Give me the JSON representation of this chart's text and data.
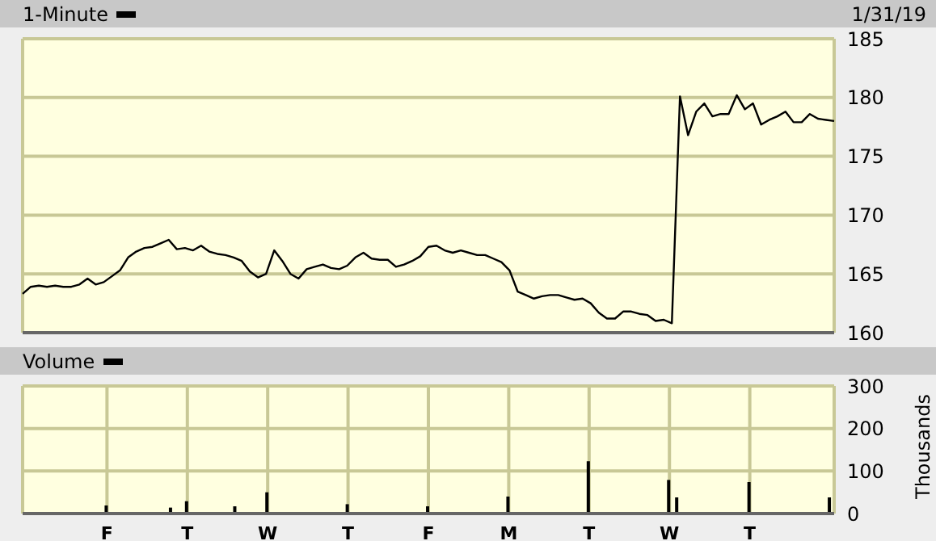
{
  "chart_data": [
    {
      "type": "line",
      "annotations": [
        "1/31/19"
      ],
      "legend": "top left",
      "grid": true,
      "tick_labels": "y",
      "ylim": [
        160,
        185
      ],
      "yticks": [
        160,
        165,
        170,
        175,
        180,
        185
      ],
      "categories": [
        null,
        null,
        null,
        null,
        null,
        null,
        null,
        null,
        null,
        null,
        null,
        null,
        null,
        null,
        null,
        null,
        null,
        null,
        null,
        null,
        null,
        null,
        null,
        null,
        null,
        null,
        null,
        null,
        null,
        null,
        null,
        null,
        null,
        null,
        null,
        null,
        null,
        null,
        null,
        null,
        null,
        null,
        null,
        null,
        null,
        null,
        null,
        null,
        null,
        null,
        null,
        null,
        null,
        null,
        null,
        null,
        null,
        null,
        null,
        null,
        null,
        null,
        null,
        null,
        null,
        null,
        null,
        null,
        null,
        null,
        null,
        null,
        null,
        null,
        null,
        null,
        null,
        null,
        null,
        null,
        null,
        null,
        null,
        null,
        null,
        null,
        null,
        null,
        null,
        null,
        null,
        null,
        null,
        null,
        null,
        null,
        null,
        null,
        null,
        null,
        null
      ],
      "series": [
        {
          "name": "1-Minute",
          "color": "#000000",
          "values": [
            163.3,
            163.9,
            164.0,
            163.9,
            164.0,
            163.9,
            163.9,
            164.1,
            164.6,
            164.1,
            164.3,
            164.8,
            165.3,
            166.4,
            166.9,
            167.2,
            167.3,
            167.6,
            167.9,
            167.1,
            167.2,
            167.0,
            167.4,
            166.9,
            166.7,
            166.6,
            166.4,
            166.1,
            165.2,
            164.7,
            165.0,
            167.0,
            166.1,
            165.0,
            164.6,
            165.4,
            165.6,
            165.8,
            165.5,
            165.4,
            165.7,
            166.4,
            166.8,
            166.3,
            166.2,
            166.2,
            165.6,
            165.8,
            166.1,
            166.5,
            167.3,
            167.4,
            167.0,
            166.8,
            167.0,
            166.8,
            166.6,
            166.6,
            166.3,
            166.0,
            165.3,
            163.5,
            163.2,
            162.9,
            163.1,
            163.2,
            163.2,
            163.0,
            162.8,
            162.9,
            162.5,
            161.7,
            161.2,
            161.2,
            161.8,
            161.8,
            161.6,
            161.5,
            161.0,
            161.1,
            160.8,
            180.1,
            176.8,
            178.8,
            179.5,
            178.4,
            178.6,
            178.6,
            180.2,
            179.0,
            179.5,
            177.7,
            178.1,
            178.4,
            178.8,
            177.9,
            177.9,
            178.6,
            178.2,
            178.1,
            178.0
          ]
        }
      ]
    },
    {
      "type": "bar",
      "ylabel": "Thousands",
      "legend": "top left",
      "grid": true,
      "ylim": [
        0,
        300
      ],
      "yticks": [
        0,
        100,
        200,
        300
      ],
      "categories": [
        null,
        null,
        null,
        null,
        null,
        null,
        null,
        null,
        null,
        null,
        "F",
        null,
        null,
        null,
        null,
        null,
        null,
        null,
        null,
        null,
        "T",
        null,
        null,
        null,
        null,
        null,
        null,
        null,
        null,
        null,
        "W",
        null,
        null,
        null,
        null,
        null,
        null,
        null,
        null,
        null,
        "T",
        null,
        null,
        null,
        null,
        null,
        null,
        null,
        null,
        null,
        "F",
        null,
        null,
        null,
        null,
        null,
        null,
        null,
        null,
        null,
        "M",
        null,
        null,
        null,
        null,
        null,
        null,
        null,
        null,
        null,
        "T",
        null,
        null,
        null,
        null,
        null,
        null,
        null,
        null,
        null,
        "W",
        null,
        null,
        null,
        null,
        null,
        null,
        null,
        null,
        null,
        "T",
        null,
        null,
        null,
        null,
        null,
        null,
        null,
        null,
        null,
        null
      ],
      "series": [
        {
          "name": "Volume",
          "color": "#000000",
          "values": [
            null,
            null,
            null,
            null,
            null,
            null,
            null,
            null,
            null,
            null,
            19,
            null,
            null,
            null,
            null,
            null,
            null,
            null,
            14,
            null,
            29,
            null,
            null,
            null,
            null,
            null,
            17,
            null,
            null,
            null,
            50,
            null,
            null,
            null,
            null,
            null,
            null,
            null,
            null,
            null,
            22,
            null,
            null,
            null,
            null,
            null,
            null,
            null,
            null,
            null,
            17,
            null,
            null,
            null,
            null,
            null,
            null,
            null,
            null,
            null,
            40,
            null,
            null,
            null,
            null,
            null,
            null,
            null,
            null,
            null,
            123,
            null,
            null,
            null,
            null,
            null,
            null,
            null,
            null,
            null,
            79,
            38,
            null,
            null,
            null,
            null,
            null,
            null,
            null,
            null,
            74,
            null,
            null,
            null,
            null,
            null,
            null,
            null,
            null,
            null,
            38
          ]
        }
      ]
    }
  ]
}
